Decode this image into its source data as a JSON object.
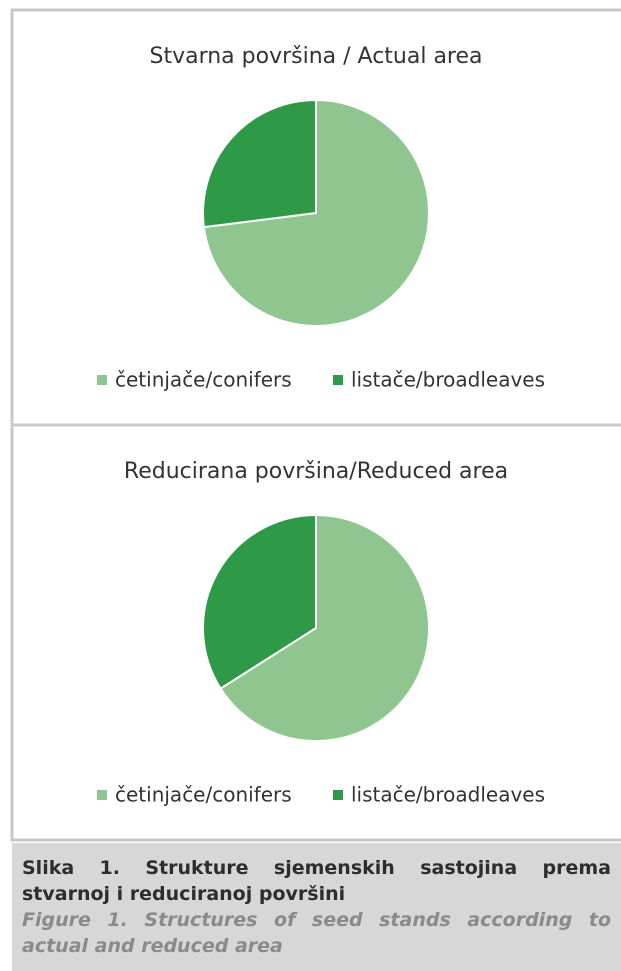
{
  "chart_data": [
    {
      "type": "pie",
      "title": "Stvarna površina / Actual area",
      "categories": [
        "četinjače/conifers",
        "listače/broadleaves"
      ],
      "values": [
        73,
        27
      ],
      "colors": [
        "#8fc68f",
        "#2e9a48"
      ],
      "legend": "bottom"
    },
    {
      "type": "pie",
      "title": "Reducirana površina/Reduced area",
      "categories": [
        "četinjače/conifers",
        "listače/broadleaves"
      ],
      "values": [
        66,
        34
      ],
      "colors": [
        "#8fc68f",
        "#2e9a48"
      ],
      "legend": "bottom"
    }
  ],
  "caption": {
    "title": "Slika 1. Strukture sjemenskih sastojina prema stvarnoj i reduciranoj površini",
    "subtitle": "Figure 1. Structures of seed stands according to actual and reduced area"
  }
}
